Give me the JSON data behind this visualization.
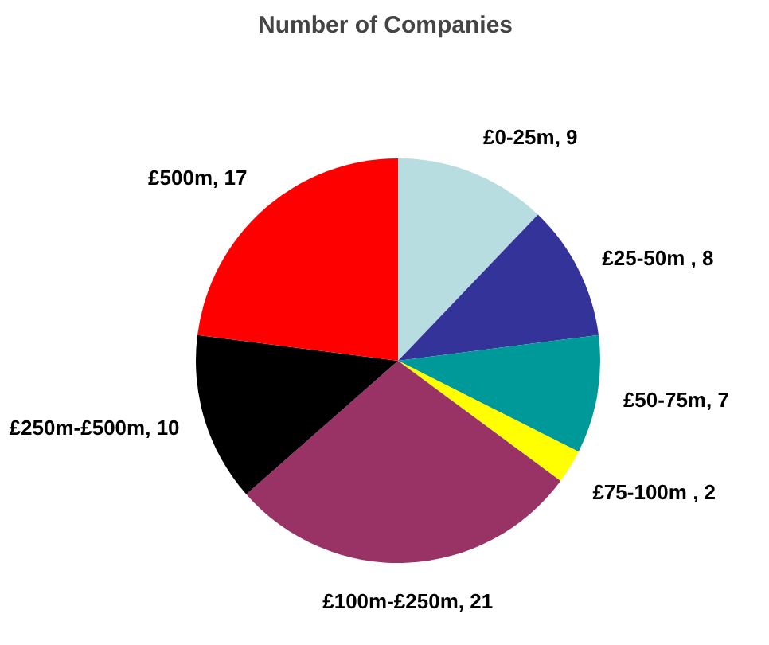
{
  "chart_data": {
    "type": "pie",
    "title": "Number of Companies",
    "categories": [
      "£0-25m, 9",
      "£25-50m   , 8",
      "£50-75m, 7",
      "£75-100m  , 2",
      "£100m-£250m, 21",
      "£250m-£500m, 10",
      "£500m, 17"
    ],
    "values": [
      9,
      8,
      7,
      2,
      21,
      10,
      17
    ],
    "colors": [
      "#b7dde1",
      "#333399",
      "#009999",
      "#ffff00",
      "#993366",
      "#000000",
      "#ff0000"
    ]
  }
}
